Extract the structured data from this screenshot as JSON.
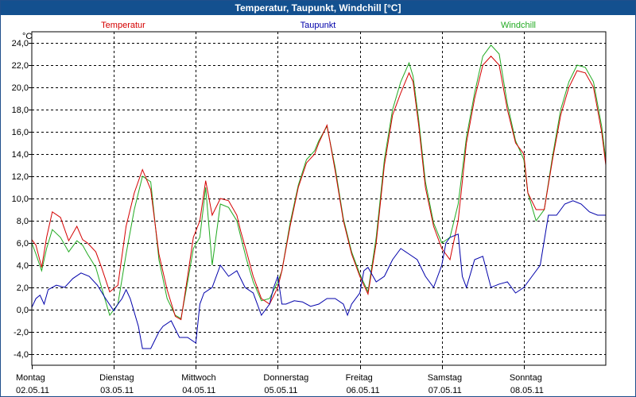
{
  "window": {
    "title": "Temperatur, Taupunkt, Windchill [°C]"
  },
  "chart_data": {
    "type": "line",
    "title": "Temperatur, Taupunkt, Windchill [°C]",
    "ylabel": "°C",
    "ylim": [
      -5,
      25
    ],
    "xlim": [
      0,
      7
    ],
    "grid": true,
    "y_ticks": [
      -4,
      -2,
      0,
      2,
      4,
      6,
      8,
      10,
      12,
      14,
      16,
      18,
      20,
      22,
      24
    ],
    "y_tick_labels": [
      "-4,0",
      "-2,0",
      "0,0",
      "2,0",
      "4,0",
      "6,0",
      "8,0",
      "10,0",
      "12,0",
      "14,0",
      "16,0",
      "18,0",
      "20,0",
      "22,0",
      "24,0"
    ],
    "x_ticks": [
      {
        "day": "Montag",
        "date": "02.05.11"
      },
      {
        "day": "Dienstag",
        "date": "03.05.11"
      },
      {
        "day": "Mittwoch",
        "date": "04.05.11"
      },
      {
        "day": "Donnerstag",
        "date": "05.05.11"
      },
      {
        "day": "Freitag",
        "date": "06.05.11"
      },
      {
        "day": "Samstag",
        "date": "07.05.11"
      },
      {
        "day": "Sonntag",
        "date": "08.05.11"
      }
    ],
    "series": [
      {
        "name": "Temperatur",
        "color": "#d40000",
        "x": [
          0,
          0.05,
          0.12,
          0.18,
          0.25,
          0.35,
          0.45,
          0.55,
          0.62,
          0.68,
          0.78,
          0.85,
          0.95,
          1.05,
          1.15,
          1.25,
          1.35,
          1.45,
          1.55,
          1.65,
          1.75,
          1.82,
          1.9,
          1.97,
          2.05,
          2.12,
          2.2,
          2.3,
          2.4,
          2.5,
          2.55,
          2.62,
          2.7,
          2.8,
          2.9,
          3.0,
          3.05,
          3.15,
          3.25,
          3.35,
          3.45,
          3.5,
          3.6,
          3.7,
          3.8,
          3.9,
          4.0,
          4.1,
          4.2,
          4.3,
          4.4,
          4.5,
          4.6,
          4.65,
          4.72,
          4.8,
          4.9,
          5.0,
          5.1,
          5.2,
          5.3,
          5.4,
          5.5,
          5.6,
          5.7,
          5.8,
          5.9,
          6.0,
          6.05,
          6.15,
          6.25,
          6.35,
          6.45,
          6.55,
          6.65,
          6.75,
          6.85,
          6.95,
          7.0
        ],
        "values": [
          6.3,
          5.8,
          3.8,
          6.5,
          8.8,
          8.3,
          6.2,
          7.5,
          6.3,
          6.0,
          5.2,
          3.8,
          1.6,
          2.2,
          7.5,
          10.5,
          12.6,
          10.8,
          5.0,
          1.8,
          -0.6,
          -0.9,
          3.0,
          6.5,
          8.0,
          11.6,
          8.5,
          10.0,
          9.8,
          8.5,
          7.0,
          5.2,
          3.0,
          1.0,
          0.5,
          2.0,
          3.5,
          7.5,
          11.0,
          13.2,
          14.0,
          15.0,
          16.6,
          12.5,
          8.0,
          5.0,
          3.0,
          1.4,
          6.0,
          13.0,
          17.5,
          19.5,
          21.3,
          20.5,
          16.5,
          11.0,
          7.5,
          5.5,
          4.5,
          8.0,
          15.0,
          19.0,
          22.0,
          22.8,
          22.0,
          18.0,
          15.0,
          14.0,
          10.5,
          9.0,
          9.0,
          13.5,
          17.5,
          20.0,
          21.5,
          21.3,
          20.0,
          16.0,
          13.0
        ]
      },
      {
        "name": "Taupunkt",
        "color": "#0000aa",
        "x": [
          0,
          0.05,
          0.1,
          0.15,
          0.2,
          0.3,
          0.4,
          0.5,
          0.6,
          0.7,
          0.8,
          0.9,
          1.0,
          1.05,
          1.1,
          1.15,
          1.2,
          1.3,
          1.35,
          1.45,
          1.55,
          1.6,
          1.7,
          1.8,
          1.9,
          2.0,
          2.05,
          2.1,
          2.2,
          2.3,
          2.4,
          2.5,
          2.6,
          2.7,
          2.8,
          2.9,
          2.95,
          3.0,
          3.05,
          3.1,
          3.2,
          3.3,
          3.4,
          3.5,
          3.6,
          3.7,
          3.8,
          3.85,
          3.9,
          4.0,
          4.05,
          4.1,
          4.2,
          4.3,
          4.4,
          4.5,
          4.6,
          4.7,
          4.8,
          4.9,
          5.0,
          5.05,
          5.1,
          5.2,
          5.25,
          5.3,
          5.4,
          5.5,
          5.6,
          5.7,
          5.8,
          5.9,
          6.0,
          6.1,
          6.2,
          6.3,
          6.4,
          6.45,
          6.5,
          6.6,
          6.7,
          6.8,
          6.9,
          7.0
        ],
        "values": [
          0.2,
          1.0,
          1.3,
          0.5,
          1.8,
          2.2,
          2.0,
          2.8,
          3.3,
          3.0,
          2.2,
          1.0,
          -0.1,
          0.5,
          1.0,
          1.8,
          1.0,
          -1.5,
          -3.5,
          -3.5,
          -2.0,
          -1.5,
          -1.0,
          -2.5,
          -2.5,
          -3.0,
          0.5,
          1.5,
          2.0,
          4.0,
          3.0,
          3.5,
          2.0,
          1.5,
          -0.5,
          0.5,
          2.0,
          3.0,
          0.5,
          0.5,
          0.8,
          0.7,
          0.3,
          0.5,
          1.0,
          1.0,
          0.5,
          -0.5,
          0.5,
          1.5,
          3.5,
          3.8,
          2.5,
          3.0,
          4.5,
          5.5,
          5.0,
          4.5,
          3.0,
          2.0,
          4.0,
          6.0,
          6.5,
          6.8,
          3.0,
          2.0,
          4.5,
          4.8,
          2.0,
          2.3,
          2.5,
          1.5,
          2.0,
          3.0,
          4.0,
          8.5,
          8.5,
          9.0,
          9.5,
          9.8,
          9.5,
          8.8,
          8.5,
          8.5
        ]
      },
      {
        "name": "Windchill",
        "color": "#22aa22",
        "x": [
          0,
          0.05,
          0.12,
          0.18,
          0.25,
          0.35,
          0.45,
          0.55,
          0.62,
          0.68,
          0.78,
          0.85,
          0.95,
          1.05,
          1.15,
          1.25,
          1.35,
          1.45,
          1.55,
          1.65,
          1.75,
          1.82,
          1.9,
          1.97,
          2.05,
          2.12,
          2.2,
          2.3,
          2.4,
          2.5,
          2.55,
          2.62,
          2.7,
          2.8,
          2.9,
          3.0,
          3.05,
          3.15,
          3.25,
          3.35,
          3.45,
          3.5,
          3.6,
          3.7,
          3.8,
          3.9,
          4.0,
          4.1,
          4.2,
          4.3,
          4.4,
          4.5,
          4.6,
          4.65,
          4.72,
          4.8,
          4.9,
          5.0,
          5.1,
          5.2,
          5.3,
          5.4,
          5.5,
          5.6,
          5.7,
          5.8,
          5.9,
          6.0,
          6.05,
          6.15,
          6.25,
          6.35,
          6.45,
          6.55,
          6.65,
          6.75,
          6.85,
          6.95,
          7.0
        ],
        "values": [
          6.0,
          5.0,
          3.5,
          5.5,
          7.2,
          6.5,
          5.2,
          6.2,
          5.8,
          5.0,
          3.8,
          2.0,
          -0.5,
          0.5,
          5.0,
          9.0,
          12.0,
          11.5,
          4.5,
          1.0,
          -0.5,
          -0.8,
          2.5,
          5.5,
          6.5,
          11.0,
          4.0,
          9.5,
          9.2,
          8.0,
          6.5,
          4.5,
          2.5,
          0.8,
          1.0,
          2.5,
          3.5,
          7.8,
          11.2,
          13.5,
          14.3,
          15.2,
          16.5,
          12.8,
          8.2,
          5.2,
          3.2,
          1.6,
          6.5,
          13.5,
          18.0,
          20.5,
          22.2,
          21.0,
          17.0,
          11.5,
          7.8,
          6.0,
          6.5,
          9.5,
          15.5,
          19.5,
          22.8,
          23.8,
          23.0,
          18.5,
          15.2,
          13.5,
          10.5,
          8.0,
          9.0,
          13.8,
          18.0,
          20.5,
          22.0,
          21.8,
          20.5,
          16.5,
          13.5
        ]
      }
    ]
  }
}
